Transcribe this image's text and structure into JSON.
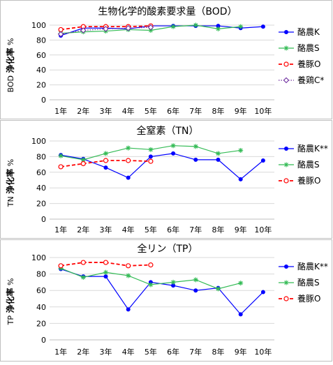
{
  "chart_data": [
    {
      "type": "line",
      "title": "生物化学的酸素要求量（BOD）",
      "ylabel_top": "%",
      "ylabel_main": "浄化率",
      "ylabel_prefix": "BOD",
      "ylim": [
        0,
        100
      ],
      "yticks": [
        0,
        20,
        40,
        60,
        80,
        100
      ],
      "categories": [
        "1年",
        "2年",
        "3年",
        "4年",
        "5年",
        "6年",
        "7年",
        "8年",
        "9年",
        "10年"
      ],
      "legend_position": "right",
      "series": [
        {
          "name": "酪農K",
          "color": "#0000ff",
          "marker": "dot",
          "dash": false,
          "values": [
            86,
            96,
            96,
            95,
            99,
            99,
            99,
            99,
            96,
            98
          ]
        },
        {
          "name": "酪農S",
          "color": "#33bb55",
          "marker": "star",
          "dash": false,
          "values": [
            89,
            91,
            92,
            94,
            93,
            98,
            100,
            95,
            98,
            null
          ]
        },
        {
          "name": "養豚O",
          "color": "#ff0000",
          "marker": "circle",
          "dash": true,
          "values": [
            94,
            98,
            98,
            98,
            99,
            null,
            null,
            null,
            null,
            null
          ]
        },
        {
          "name": "養鶏C*",
          "color": "#7030a0",
          "marker": "diamond",
          "dash": "dot",
          "values": [
            88,
            93,
            95,
            96,
            97,
            null,
            null,
            null,
            null,
            null
          ]
        }
      ]
    },
    {
      "type": "line",
      "title": "全窒素（TN）",
      "ylabel_top": "%",
      "ylabel_main": "浄化率",
      "ylabel_prefix": "TN",
      "ylim": [
        0,
        100
      ],
      "yticks": [
        0,
        20,
        40,
        60,
        80,
        100
      ],
      "categories": [
        "1年",
        "2年",
        "3年",
        "4年",
        "5年",
        "6年",
        "7年",
        "8年",
        "9年",
        "10年"
      ],
      "legend_position": "right",
      "series": [
        {
          "name": "酪農K**",
          "color": "#0000ff",
          "marker": "dot",
          "dash": false,
          "values": [
            82,
            77,
            66,
            53,
            80,
            84,
            76,
            76,
            51,
            75
          ]
        },
        {
          "name": "酪農S",
          "color": "#33bb55",
          "marker": "star",
          "dash": false,
          "values": [
            81,
            76,
            84,
            91,
            89,
            94,
            93,
            84,
            88,
            null
          ]
        },
        {
          "name": "養豚O",
          "color": "#ff0000",
          "marker": "circle",
          "dash": true,
          "values": [
            67,
            71,
            75,
            75,
            74,
            null,
            null,
            null,
            null,
            null
          ]
        }
      ]
    },
    {
      "type": "line",
      "title": "全リン（TP）",
      "ylabel_top": "%",
      "ylabel_main": "浄化率",
      "ylabel_prefix": "TP",
      "ylim": [
        0,
        100
      ],
      "yticks": [
        0,
        20,
        40,
        60,
        80,
        100
      ],
      "categories": [
        "1年",
        "2年",
        "3年",
        "4年",
        "5年",
        "6年",
        "7年",
        "8年",
        "9年",
        "10年"
      ],
      "legend_position": "right",
      "series": [
        {
          "name": "酪農K**",
          "color": "#0000ff",
          "marker": "dot",
          "dash": false,
          "values": [
            86,
            77,
            77,
            37,
            70,
            66,
            60,
            63,
            31,
            58
          ]
        },
        {
          "name": "酪農S",
          "color": "#33bb55",
          "marker": "star",
          "dash": false,
          "values": [
            87,
            76,
            82,
            78,
            67,
            70,
            73,
            62,
            69,
            null
          ]
        },
        {
          "name": "養豚O",
          "color": "#ff0000",
          "marker": "circle",
          "dash": true,
          "values": [
            90,
            94,
            94,
            90,
            91,
            null,
            null,
            null,
            null,
            null
          ]
        }
      ]
    }
  ]
}
